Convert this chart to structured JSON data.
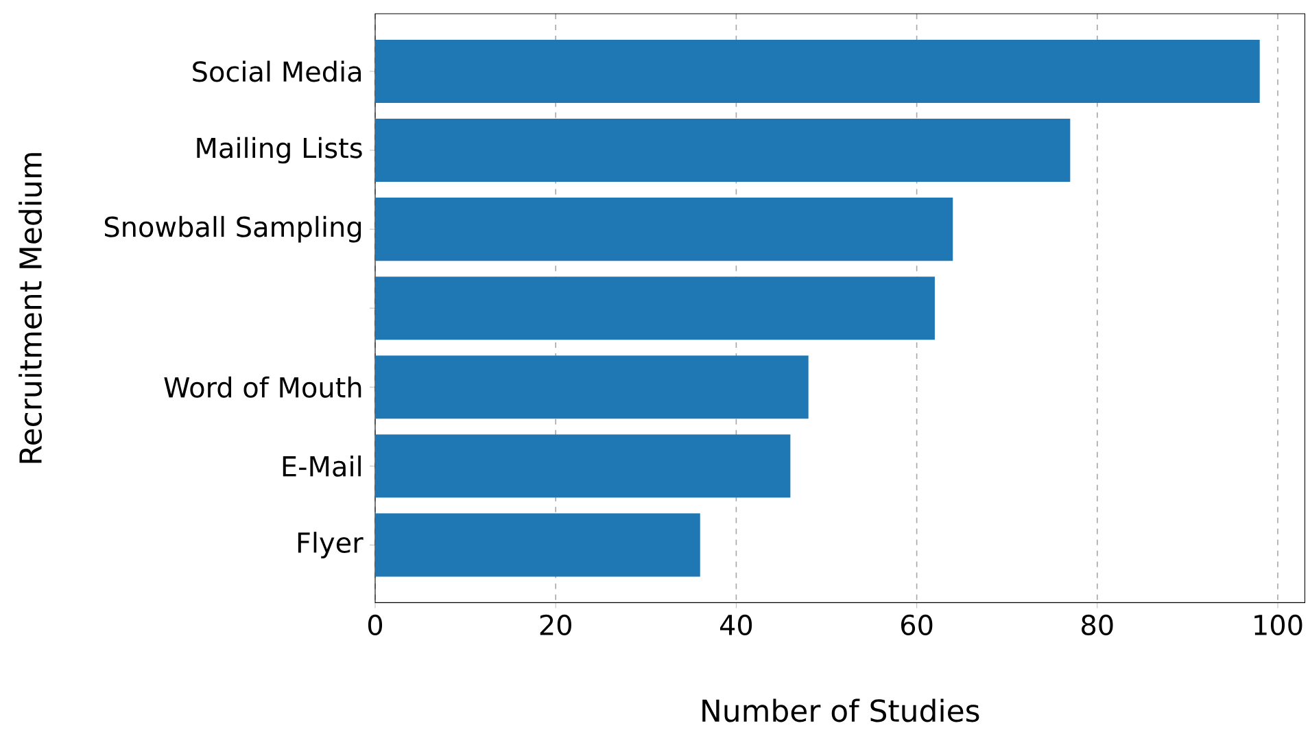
{
  "chart_data": {
    "type": "bar",
    "orientation": "horizontal",
    "categories": [
      "Social Media",
      "Mailing Lists",
      "Snowball Sampling",
      null,
      "Word of Mouth",
      "E-Mail",
      "Flyer"
    ],
    "values": [
      98,
      77,
      64,
      62,
      48,
      46,
      36
    ],
    "color": "#1f77b4",
    "xlabel": "Number of Studies",
    "ylabel": "Recruitment Medium",
    "xlim": [
      0,
      103
    ],
    "xticks": [
      0,
      20,
      40,
      60,
      80,
      100
    ],
    "grid": "x"
  }
}
